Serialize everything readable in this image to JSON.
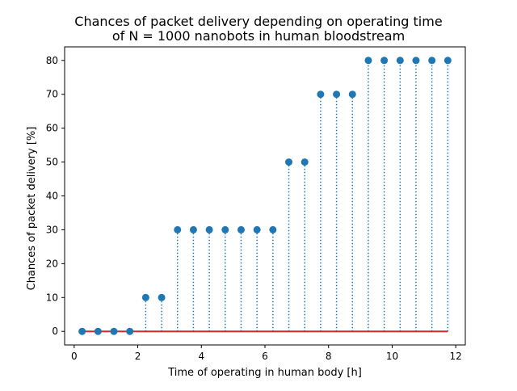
{
  "chart_data": {
    "type": "stem",
    "title_line1": "Chances of packet delivery depending on operating time",
    "title_line2": "of N = 1000 nanobots in human bloodstream",
    "xlabel": "Time of operating in human body [h]",
    "ylabel": "Chances of packet delivery [%]",
    "x": [
      0.25,
      0.75,
      1.25,
      1.75,
      2.25,
      2.75,
      3.25,
      3.75,
      4.25,
      4.75,
      5.25,
      5.75,
      6.25,
      6.75,
      7.25,
      7.75,
      8.25,
      8.75,
      9.25,
      9.75,
      10.25,
      10.75,
      11.25,
      11.75
    ],
    "values": [
      0,
      0,
      0,
      0,
      10,
      10,
      30,
      30,
      30,
      30,
      30,
      30,
      30,
      50,
      50,
      70,
      70,
      70,
      80,
      80,
      80,
      80,
      80,
      80
    ],
    "xlim": [
      -0.3,
      12.3
    ],
    "ylim": [
      -4,
      84
    ],
    "xticks": [
      0,
      2,
      4,
      6,
      8,
      10,
      12
    ],
    "yticks": [
      0,
      10,
      20,
      30,
      40,
      50,
      60,
      70,
      80
    ],
    "grid": false,
    "colors": {
      "marker": "#1f77b4",
      "baseline": "#d62728"
    }
  }
}
